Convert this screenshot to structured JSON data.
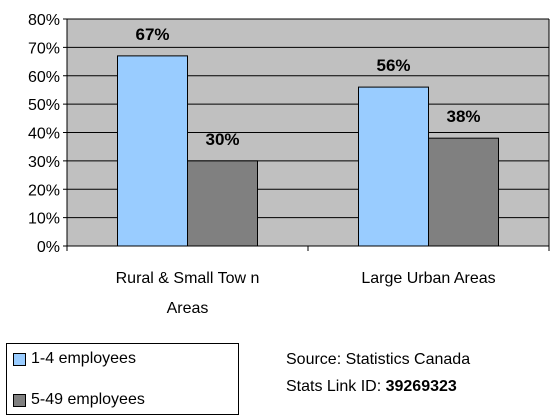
{
  "chart_data": {
    "type": "bar",
    "categories": [
      "Rural & Small Tow n Areas",
      "Large Urban Areas"
    ],
    "category_lines": [
      [
        "Rural & Small Tow n",
        "Areas"
      ],
      [
        "Large Urban Areas"
      ]
    ],
    "series": [
      {
        "name": "1-4 employees",
        "values": [
          67,
          56
        ],
        "labels": [
          "67%",
          "56%"
        ],
        "color": "#99ccff"
      },
      {
        "name": "5-49 employees",
        "values": [
          30,
          38
        ],
        "labels": [
          "30%",
          "38%"
        ],
        "color": "#808080"
      }
    ],
    "ylim": [
      0,
      80
    ],
    "y_ticks": [
      "0%",
      "10%",
      "20%",
      "30%",
      "40%",
      "50%",
      "60%",
      "70%",
      "80%"
    ],
    "grid": true,
    "plot_background": "#c0c0c0",
    "legend_position": "bottom-left"
  },
  "source": {
    "line1": "Source: Statistics Canada",
    "line2_prefix": "Stats Link ID: ",
    "line2_id": "39269323"
  }
}
